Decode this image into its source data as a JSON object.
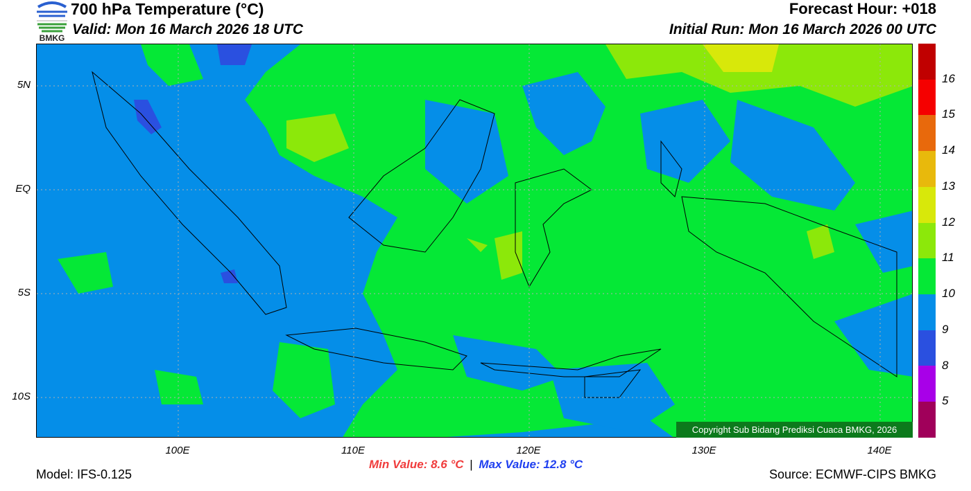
{
  "header": {
    "title": "700 hPa Temperature (°C)",
    "valid": "Valid: Mon 16 March 2026 18 UTC",
    "forecast_hour": "Forecast Hour: +018",
    "initial_run": "Initial Run: Mon 16 March 2026 00 UTC"
  },
  "logo": {
    "text": "BMKG"
  },
  "axes": {
    "lat_labels": [
      "5N",
      "EQ",
      "5S",
      "10S"
    ],
    "lon_labels": [
      "100E",
      "110E",
      "120E",
      "130E",
      "140E"
    ]
  },
  "colorbar": {
    "labels": [
      "16",
      "15",
      "14",
      "13",
      "12",
      "11",
      "10",
      "9",
      "8",
      "5"
    ],
    "colors": [
      "#c00000",
      "#f50000",
      "#e8690c",
      "#e8b90c",
      "#d8e80a",
      "#8ce80a",
      "#05e836",
      "#058ee8",
      "#2a50e0",
      "#a800e8",
      "#a0005a"
    ]
  },
  "copyright": "Copyright Sub Bidang Prediksi Cuaca BMKG, 2026",
  "footer": {
    "model": "Model: IFS-0.125",
    "min_value": "Min Value: 8.6 °C",
    "separator": "|",
    "max_value": "Max Value: 12.8 °C",
    "source": "Source: ECMWF-CIPS BMKG"
  },
  "colors": {
    "min": "#f03c3c",
    "max": "#2040f0"
  }
}
